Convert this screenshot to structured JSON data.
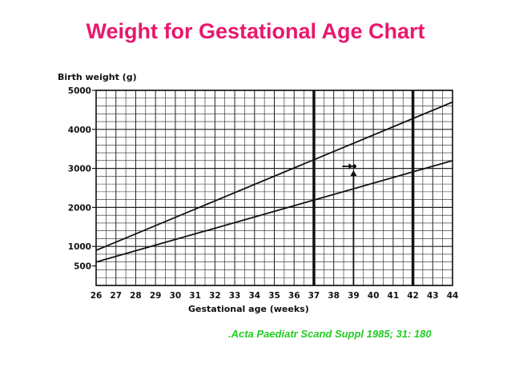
{
  "slide": {
    "title": "Weight for Gestational Age Chart",
    "citation": ".Acta Paediatr Scand Suppl 1985; 31: 180",
    "title_color": "#e8186d",
    "citation_color": "#22cc22"
  },
  "chart_data": {
    "type": "line",
    "title": "",
    "ylabel": "Birth weight (g)",
    "xlabel": "Gestational age (weeks)",
    "xlim": [
      26,
      44
    ],
    "ylim": [
      0,
      5000
    ],
    "x_ticks": [
      26,
      27,
      28,
      29,
      30,
      31,
      32,
      33,
      34,
      35,
      36,
      37,
      38,
      39,
      40,
      41,
      42,
      43,
      44
    ],
    "y_ticks": [
      500,
      1000,
      2000,
      3000,
      4000,
      5000
    ],
    "grid": true,
    "vertical_markers": [
      37,
      42
    ],
    "series": [
      {
        "x": [
          26,
          44
        ],
        "values": [
          900,
          4700
        ]
      },
      {
        "x": [
          26,
          44
        ],
        "values": [
          600,
          3200
        ]
      }
    ],
    "annotation": {
      "x": 39,
      "y": 2950
    }
  }
}
